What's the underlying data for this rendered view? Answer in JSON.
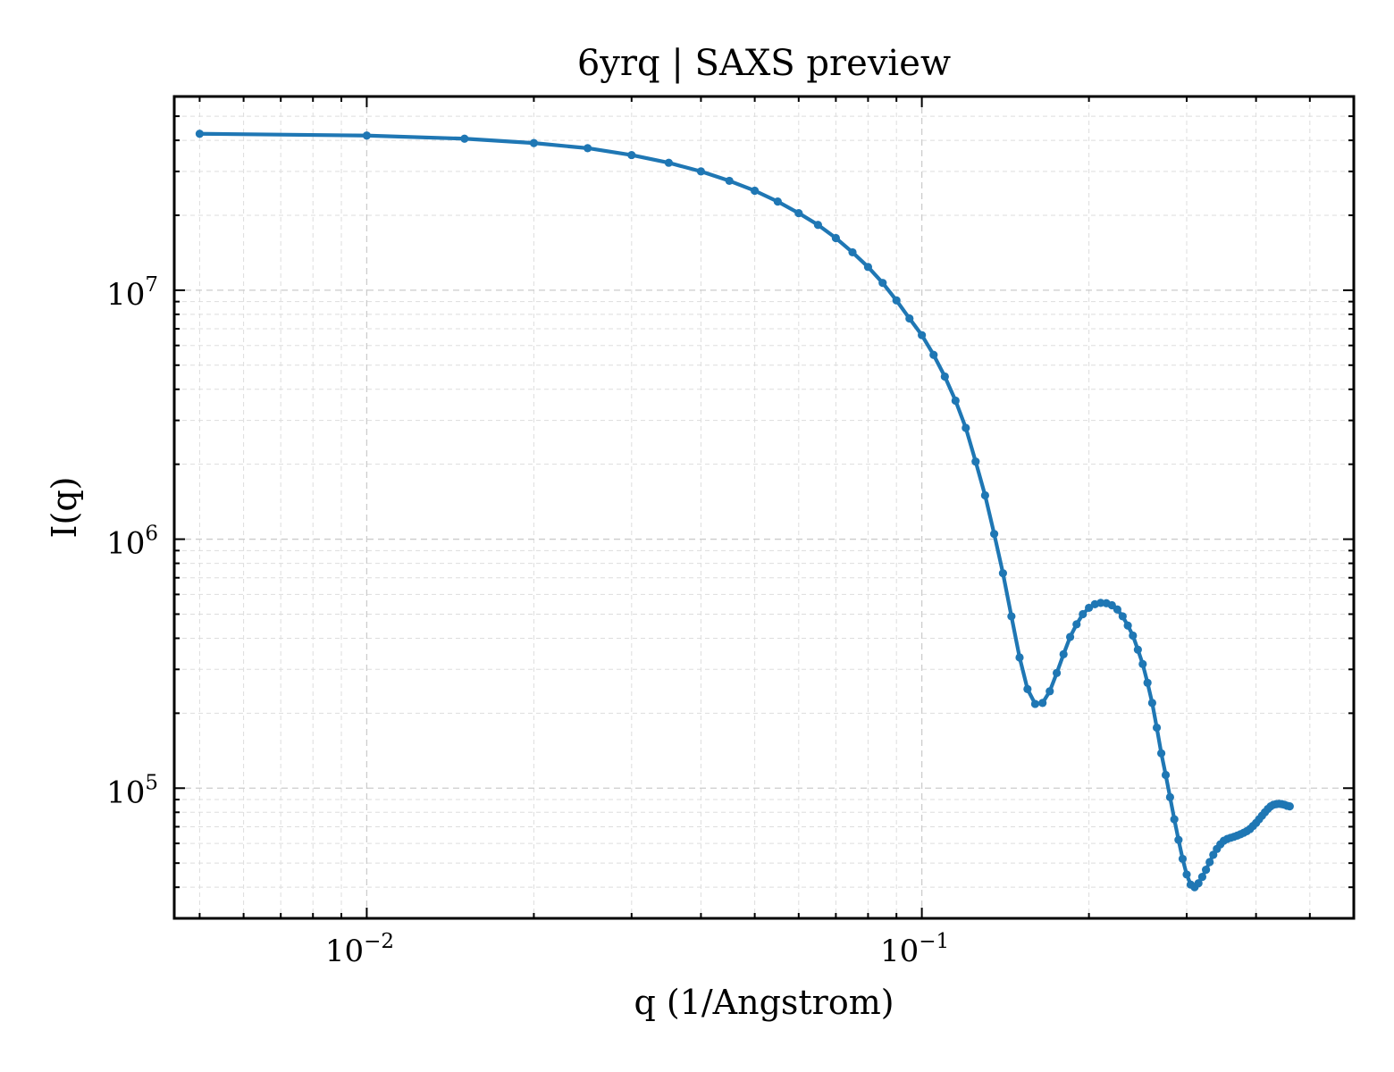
{
  "chart_data": {
    "type": "line",
    "title": "6yrq | SAXS preview",
    "xlabel": "q (1/Angstrom)",
    "ylabel": "I(q)",
    "xscale": "log",
    "yscale": "log",
    "xlim": [
      0.0045,
      0.6
    ],
    "ylim": [
      30000,
      60000000
    ],
    "grid": true,
    "x_ticks": [
      {
        "value": 0.01,
        "base": "10",
        "exp": "−2"
      },
      {
        "value": 0.1,
        "base": "10",
        "exp": "−1"
      }
    ],
    "y_ticks": [
      {
        "value": 100000,
        "base": "10",
        "exp": "5"
      },
      {
        "value": 1000000,
        "base": "10",
        "exp": "6"
      },
      {
        "value": 10000000,
        "base": "10",
        "exp": "7"
      }
    ],
    "line_color": "#1f77b4",
    "series": [
      {
        "marker": "dot",
        "points": [
          [
            0.005,
            42500000
          ],
          [
            0.01,
            41800000
          ],
          [
            0.015,
            40600000
          ],
          [
            0.02,
            39000000
          ],
          [
            0.025,
            37200000
          ],
          [
            0.03,
            34900000
          ],
          [
            0.035,
            32500000
          ],
          [
            0.04,
            30000000
          ],
          [
            0.045,
            27500000
          ],
          [
            0.05,
            25100000
          ],
          [
            0.055,
            22700000
          ],
          [
            0.06,
            20400000
          ],
          [
            0.065,
            18300000
          ],
          [
            0.07,
            16200000
          ],
          [
            0.075,
            14200000
          ],
          [
            0.08,
            12400000
          ],
          [
            0.085,
            10700000
          ],
          [
            0.09,
            9100000
          ],
          [
            0.095,
            7700000
          ],
          [
            0.1,
            6600000
          ],
          [
            0.105,
            5500000
          ],
          [
            0.11,
            4500000
          ],
          [
            0.115,
            3600000
          ],
          [
            0.12,
            2800000
          ],
          [
            0.125,
            2050000
          ],
          [
            0.13,
            1500000
          ],
          [
            0.135,
            1050000
          ],
          [
            0.14,
            730000
          ],
          [
            0.145,
            490000
          ],
          [
            0.15,
            335000
          ],
          [
            0.155,
            250000
          ],
          [
            0.16,
            218000
          ],
          [
            0.165,
            220000
          ],
          [
            0.17,
            245000
          ],
          [
            0.175,
            290000
          ],
          [
            0.18,
            345000
          ],
          [
            0.185,
            405000
          ],
          [
            0.19,
            455000
          ],
          [
            0.195,
            500000
          ],
          [
            0.2,
            530000
          ],
          [
            0.205,
            548000
          ],
          [
            0.21,
            555000
          ],
          [
            0.215,
            553000
          ],
          [
            0.22,
            543000
          ],
          [
            0.225,
            522000
          ],
          [
            0.23,
            490000
          ],
          [
            0.235,
            450000
          ],
          [
            0.24,
            410000
          ],
          [
            0.245,
            360000
          ],
          [
            0.25,
            315000
          ],
          [
            0.255,
            265000
          ],
          [
            0.26,
            220000
          ],
          [
            0.265,
            175000
          ],
          [
            0.27,
            138000
          ],
          [
            0.275,
            113000
          ],
          [
            0.28,
            92000
          ],
          [
            0.285,
            75000
          ],
          [
            0.29,
            62000
          ],
          [
            0.295,
            52000
          ],
          [
            0.3,
            45000
          ],
          [
            0.305,
            41000
          ],
          [
            0.31,
            40000
          ],
          [
            0.315,
            41500
          ],
          [
            0.32,
            44000
          ],
          [
            0.325,
            47000
          ],
          [
            0.33,
            50500
          ],
          [
            0.335,
            54000
          ],
          [
            0.34,
            57000
          ],
          [
            0.345,
            59500
          ],
          [
            0.35,
            61500
          ],
          [
            0.355,
            62500
          ],
          [
            0.36,
            63200
          ],
          [
            0.365,
            63800
          ],
          [
            0.37,
            64500
          ],
          [
            0.375,
            65300
          ],
          [
            0.38,
            66200
          ],
          [
            0.385,
            67200
          ],
          [
            0.39,
            68500
          ],
          [
            0.395,
            70500
          ],
          [
            0.4,
            72500
          ],
          [
            0.405,
            75000
          ],
          [
            0.41,
            77500
          ],
          [
            0.415,
            80000
          ],
          [
            0.42,
            82500
          ],
          [
            0.425,
            84500
          ],
          [
            0.43,
            85800
          ],
          [
            0.435,
            86300
          ],
          [
            0.44,
            86500
          ],
          [
            0.445,
            86300
          ],
          [
            0.45,
            85800
          ],
          [
            0.455,
            85000
          ],
          [
            0.46,
            84500
          ]
        ]
      }
    ]
  }
}
